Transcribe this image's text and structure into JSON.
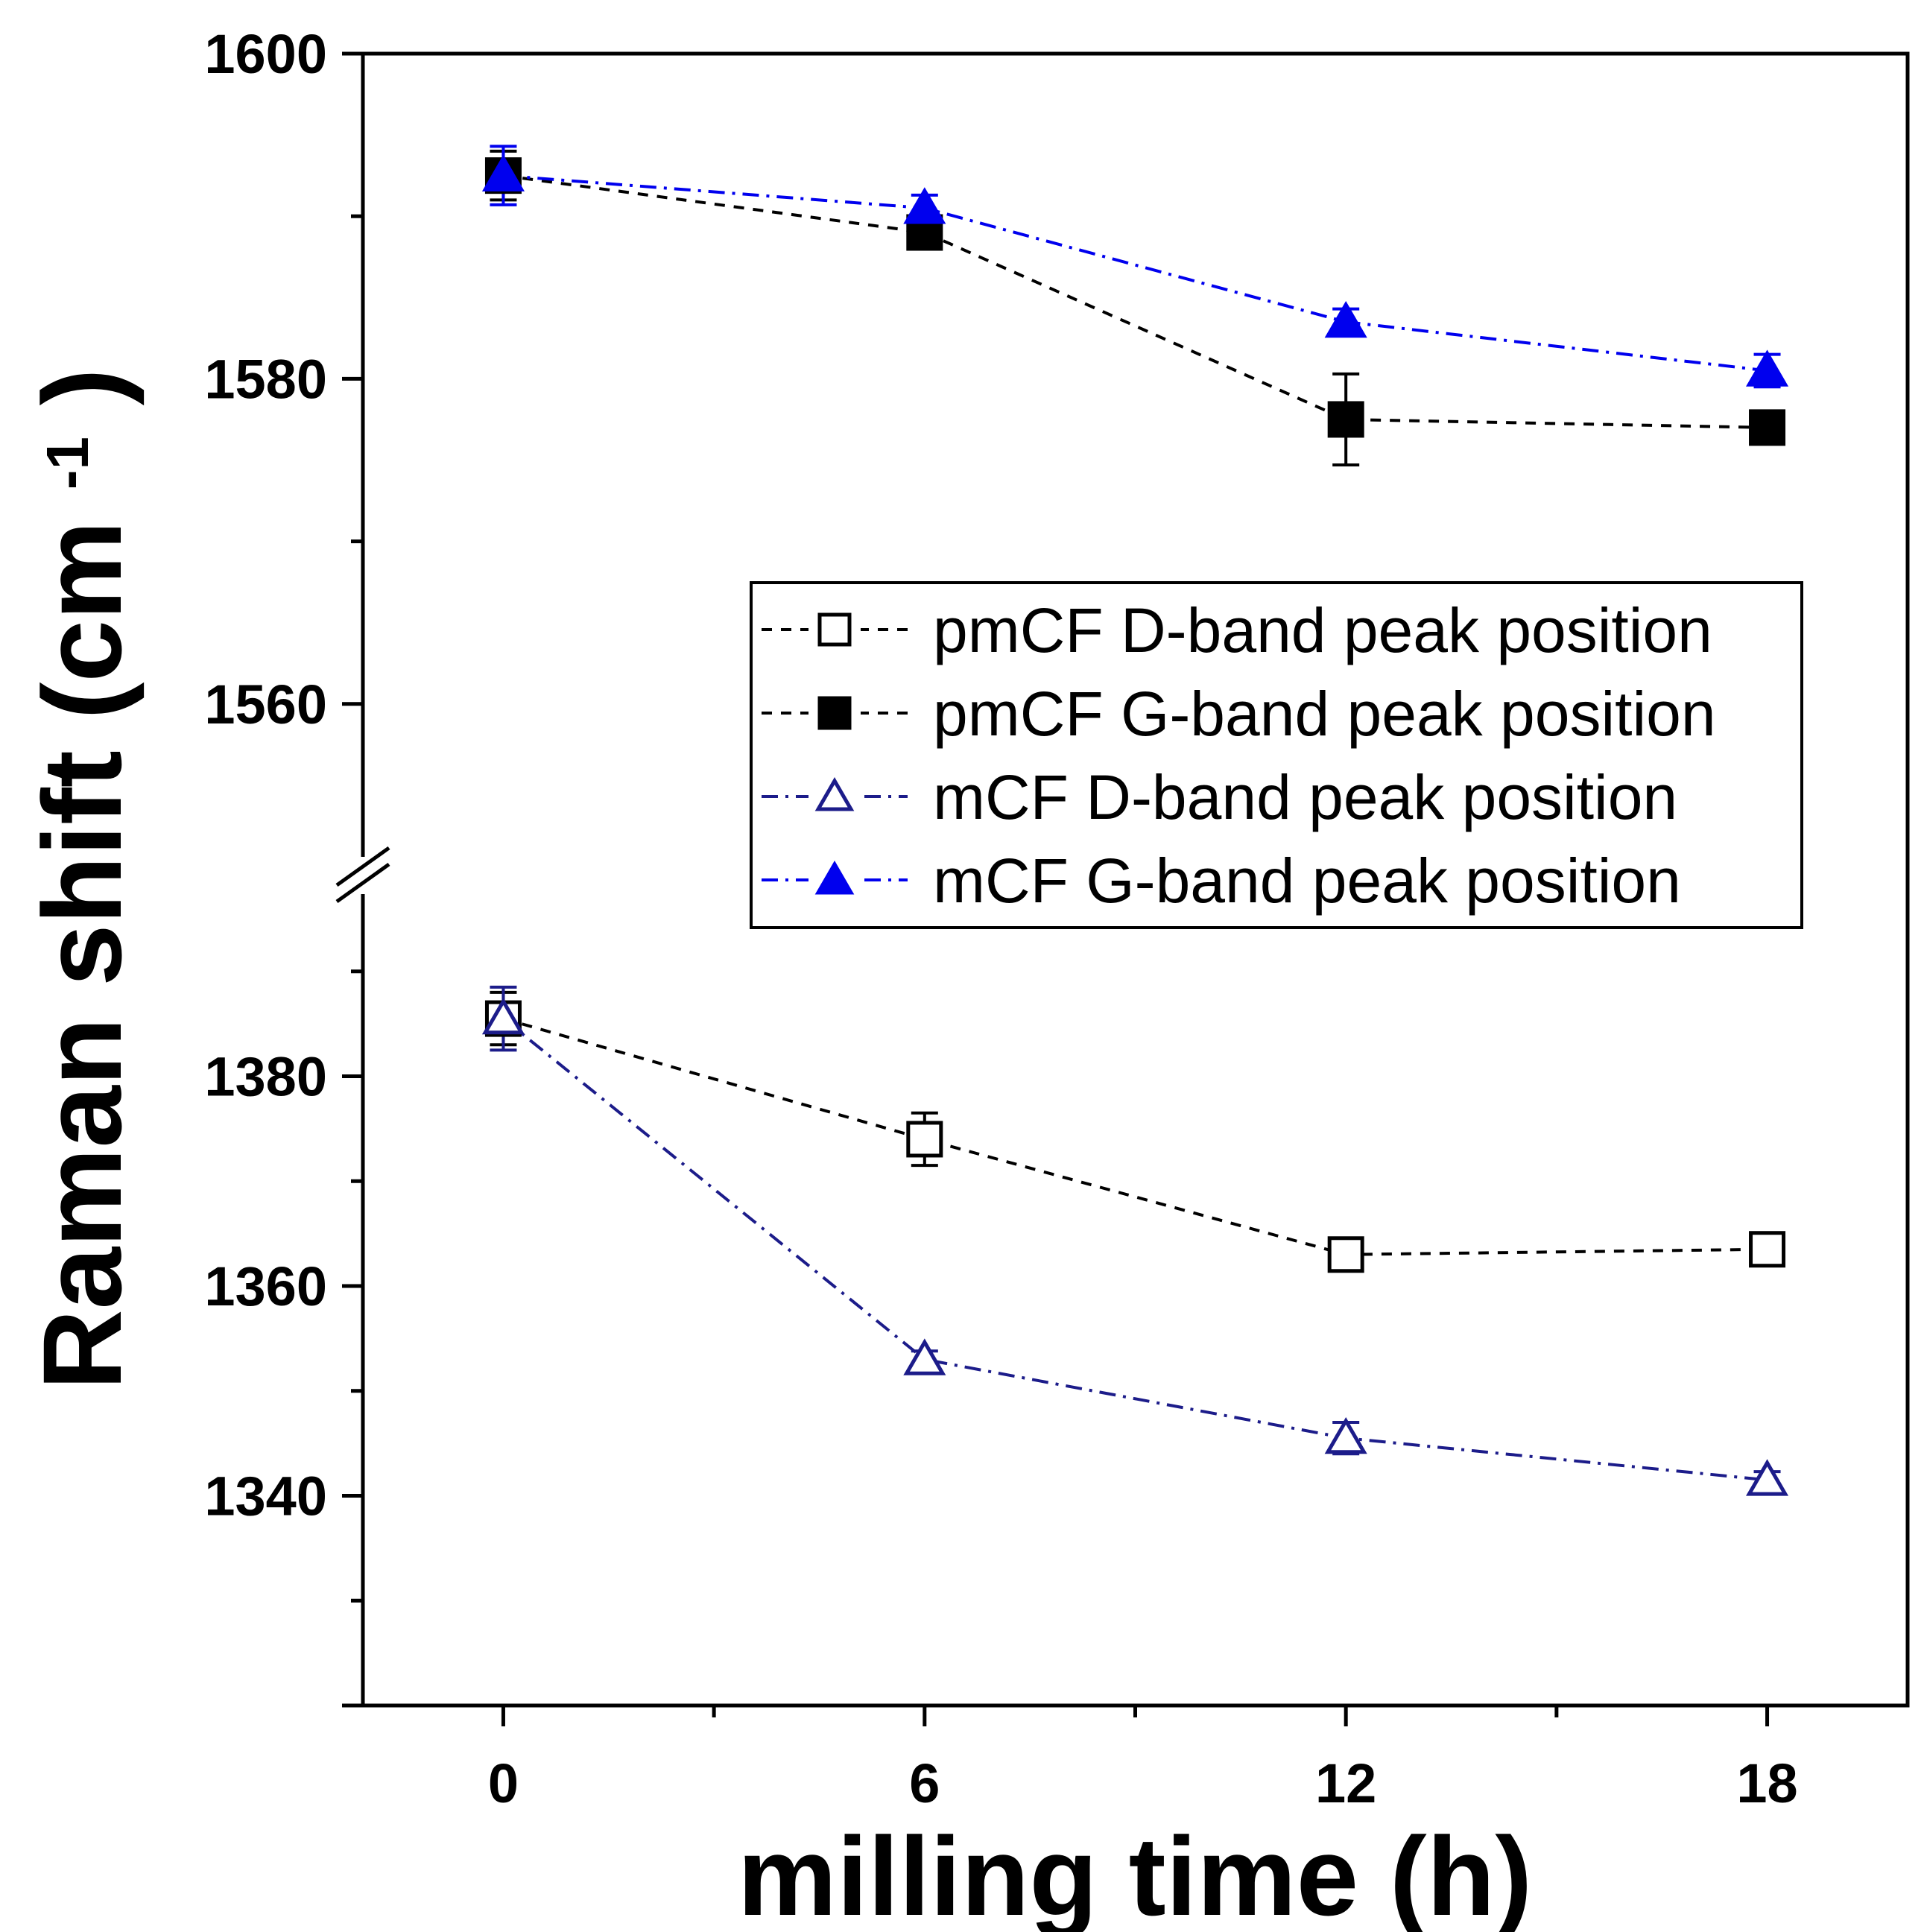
{
  "chart_data": {
    "type": "line",
    "title": "",
    "xlabel": "milling time (h)",
    "ylabel": "Raman shift (cm",
    "ylabel_sup": "-1",
    "ylabel_close": ")",
    "x": [
      0,
      6,
      12,
      18
    ],
    "xticks": [
      "0",
      "6",
      "12",
      "18"
    ],
    "xlim": [
      -2,
      20
    ],
    "ylim": [
      1320,
      1600
    ],
    "axis_break": {
      "from": 1400,
      "to": 1550
    },
    "yticks_major": [
      "1340",
      "1360",
      "1380",
      "1560",
      "1580",
      "1600"
    ],
    "legend_position": "center-right",
    "series": [
      {
        "name": "pmCF D-band peak position",
        "values": [
          1385.5,
          1374,
          1363,
          1363.5
        ],
        "errors": [
          2.5,
          2.5,
          1.0,
          0.8
        ],
        "color": "#000000",
        "marker": "square-open",
        "line": "dashed"
      },
      {
        "name": "pmCF G-band peak position",
        "values": [
          1592.5,
          1589,
          1577.5,
          1577
        ],
        "errors": [
          1.5,
          0.8,
          2.8,
          0.8
        ],
        "color": "#000000",
        "marker": "square-filled",
        "line": "dashed"
      },
      {
        "name": "mCF D-band peak position",
        "values": [
          1385.5,
          1353,
          1345.5,
          1341.5
        ],
        "errors": [
          3.0,
          0.8,
          1.5,
          0.8
        ],
        "color": "#1c1c8a",
        "marker": "triangle-open",
        "line": "dashdot"
      },
      {
        "name": "mCF G-band peak position",
        "values": [
          1592.5,
          1590.5,
          1583.5,
          1580.5
        ],
        "errors": [
          1.8,
          0.8,
          0.8,
          1.0
        ],
        "color": "#0000ee",
        "marker": "triangle-filled",
        "line": "dashdot"
      }
    ]
  }
}
